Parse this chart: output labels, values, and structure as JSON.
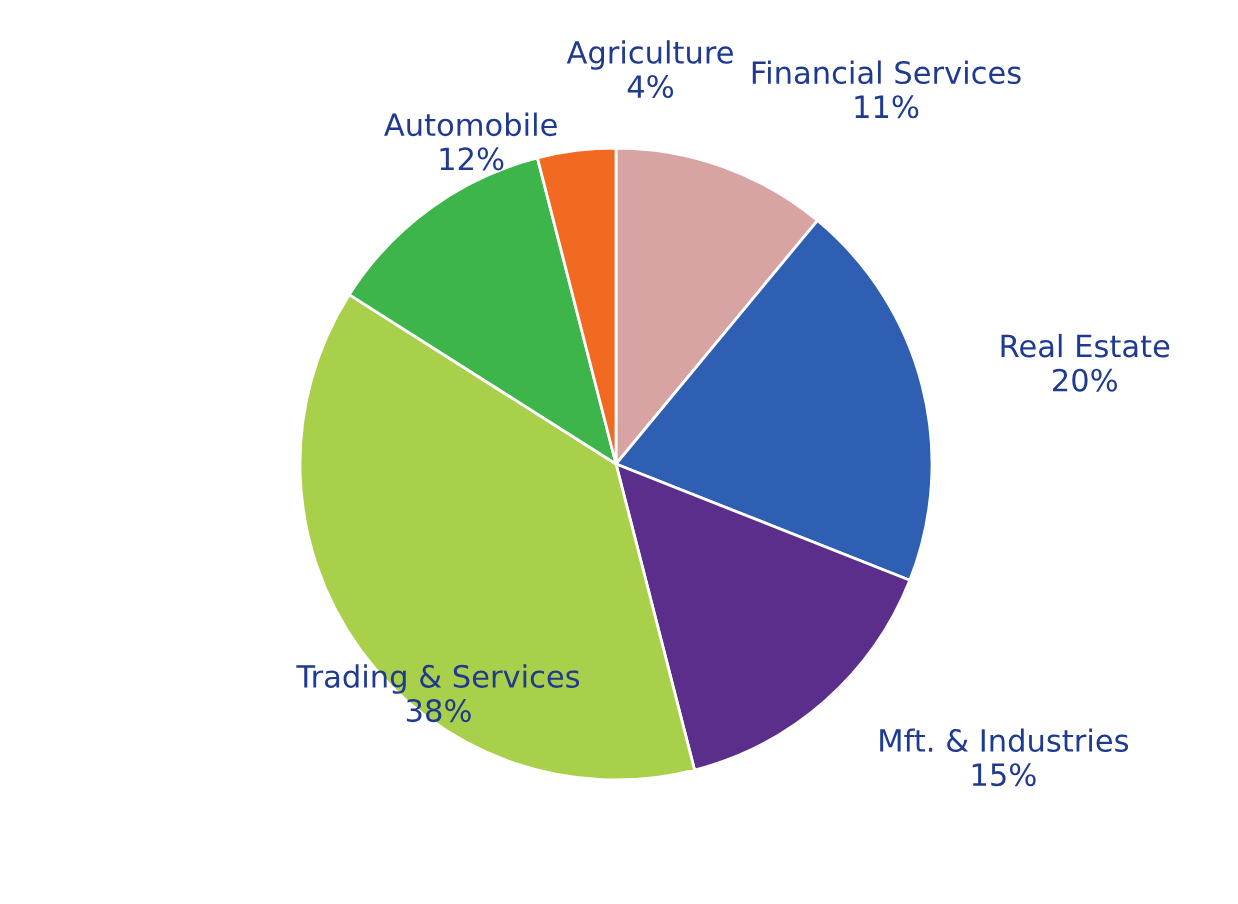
{
  "chart_data": {
    "type": "pie",
    "categories": [
      "Financial Services",
      "Real Estate",
      "Mft. & Industries",
      "Trading & Services",
      "Automobile",
      "Agriculture"
    ],
    "values": [
      11,
      20,
      15,
      38,
      12,
      4
    ],
    "value_labels": [
      "11%",
      "20%",
      "15%",
      "38%",
      "12%",
      "4%"
    ],
    "colors": [
      "#d8a3a3",
      "#2f5fb3",
      "#5b2e8c",
      "#a9d04b",
      "#3db54b",
      "#f26a21"
    ]
  }
}
